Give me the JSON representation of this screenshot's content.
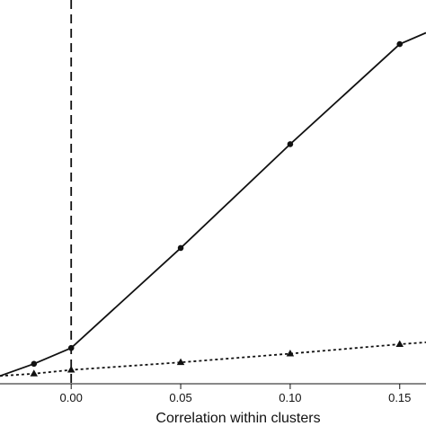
{
  "chart_data": {
    "type": "line",
    "xlabel": "Correlation within clusters",
    "ylabel": "",
    "xlim": [
      -0.0325,
      0.162
    ],
    "ylim": [
      0,
      1
    ],
    "grid": false,
    "x_ticks": [
      {
        "value": 0.0,
        "label": "0.00"
      },
      {
        "value": 0.05,
        "label": "0.05"
      },
      {
        "value": 0.1,
        "label": "0.10"
      },
      {
        "value": 0.15,
        "label": "0.15"
      }
    ],
    "reference_line": {
      "x": 0.0,
      "style": "dashed"
    },
    "series": [
      {
        "marker": "circle",
        "line_style": "solid",
        "x": [
          -0.0325,
          -0.017,
          0.0,
          0.05,
          0.1,
          0.15,
          0.162
        ],
        "y": [
          0.016,
          0.048,
          0.09,
          0.355,
          0.63,
          0.895,
          0.925
        ],
        "marked": [
          false,
          true,
          true,
          true,
          true,
          true,
          false
        ]
      },
      {
        "marker": "triangle",
        "line_style": "dotted",
        "x": [
          -0.0325,
          -0.017,
          0.0,
          0.05,
          0.1,
          0.15,
          0.162
        ],
        "y": [
          0.016,
          0.022,
          0.032,
          0.052,
          0.075,
          0.1,
          0.105
        ],
        "marked": [
          false,
          true,
          true,
          true,
          true,
          true,
          false
        ]
      }
    ]
  }
}
